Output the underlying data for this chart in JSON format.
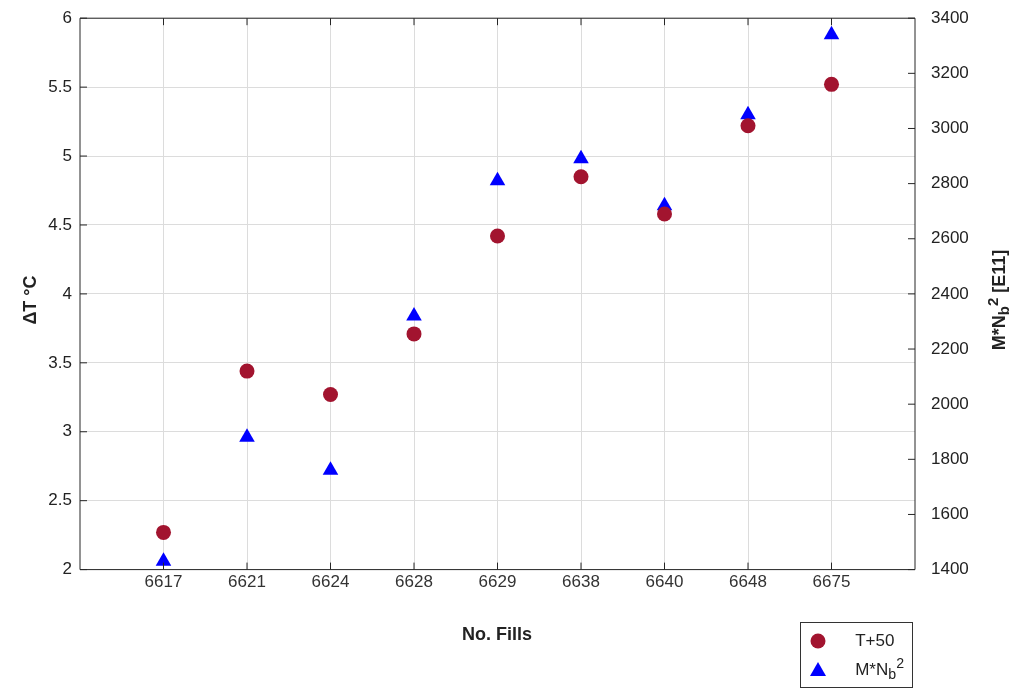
{
  "chart_data": {
    "type": "scatter",
    "xlabel": "No. Fills",
    "ylabel": "ΔT °C",
    "y2label": "M*N$_{b}$$^{2}$ [E11]",
    "categories": [
      "6617",
      "6621",
      "6624",
      "6628",
      "6629",
      "6638",
      "6640",
      "6648",
      "6675"
    ],
    "series": [
      {
        "name": "T+50",
        "color": "#a2142f",
        "marker": "circle",
        "values": [
          2.27,
          3.44,
          3.27,
          3.71,
          4.42,
          4.85,
          4.58,
          5.22,
          5.52
        ]
      },
      {
        "name": "M*N$_{b}$$^{2}$",
        "color": "#0000ff",
        "marker": "triangle",
        "axis": "y2",
        "values": [
          1430,
          1880,
          1760,
          2320,
          2810,
          2890,
          2720,
          3050,
          3340
        ]
      }
    ],
    "ylim": [
      2,
      6
    ],
    "yticks": [
      2,
      2.5,
      3,
      3.5,
      4,
      4.5,
      5,
      5.5,
      6
    ],
    "y2lim": [
      1400,
      3400
    ],
    "y2ticks": [
      1400,
      1600,
      1800,
      2000,
      2200,
      2400,
      2600,
      2800,
      3000,
      3200,
      3400
    ],
    "grid": true,
    "legend": "bottom right"
  }
}
